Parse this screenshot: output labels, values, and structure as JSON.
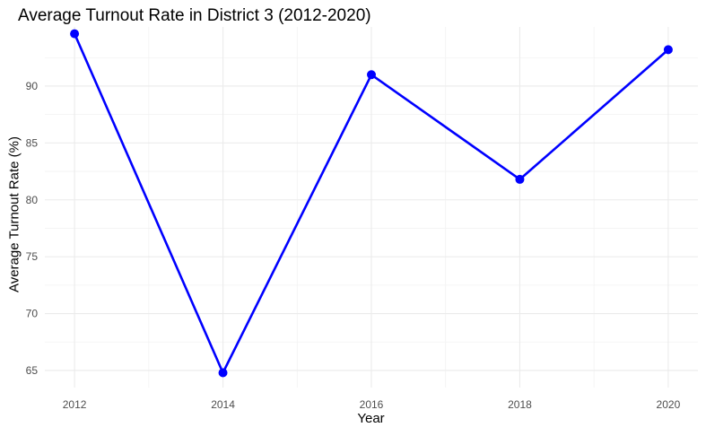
{
  "chart_data": {
    "type": "line",
    "title": "Average Turnout Rate in District 3 (2012-2020)",
    "xlabel": "Year",
    "ylabel": "Average Turnout Rate (%)",
    "x": [
      2012,
      2014,
      2016,
      2018,
      2020
    ],
    "series": [
      {
        "values": [
          94.6,
          64.8,
          91.0,
          81.8,
          93.2
        ],
        "color": "#0000ff"
      }
    ],
    "x_ticks": [
      "2012",
      "2014",
      "2016",
      "2018",
      "2020"
    ],
    "y_ticks": [
      "65",
      "70",
      "75",
      "80",
      "85",
      "90"
    ],
    "xlim": [
      2011.6,
      2020.4
    ],
    "ylim": [
      63.5,
      95.2
    ],
    "grid": true,
    "legend": "none"
  }
}
